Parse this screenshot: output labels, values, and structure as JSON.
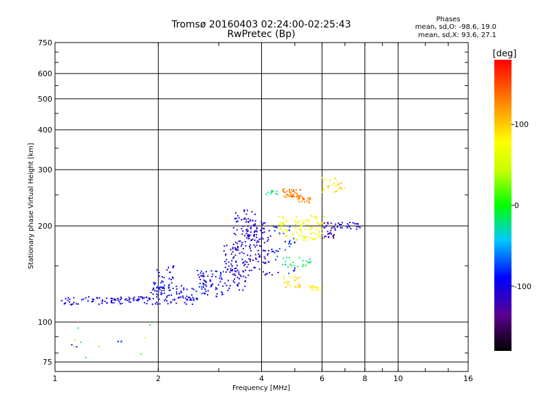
{
  "chart_data": {
    "type": "scatter",
    "title": "Tromsø 20160403 02:24:00-02:25:43",
    "subtitle": "RwPretec (Bp)",
    "xlabel": "Frequency [MHz]",
    "ylabel": "Stationary phase Virtual Height [km]",
    "x_scale": "log",
    "y_scale": "log",
    "xlim": [
      1,
      16
    ],
    "ylim": [
      70,
      750
    ],
    "x_ticks": [
      "1",
      "2",
      "4",
      "6",
      "8",
      "10",
      "16"
    ],
    "y_ticks": [
      "75",
      "100",
      "200",
      "300",
      "400",
      "500",
      "600",
      "750"
    ],
    "grid": true,
    "phase_box": {
      "title": "Phases",
      "line1": "mean, sd,O: -98.6, 19.0",
      "line2": "mean, sd,X:  93.6, 27.1"
    },
    "colorbar": {
      "label": "[deg]",
      "range": [
        -180,
        180
      ],
      "ticks": [
        "100",
        "0",
        "-100"
      ],
      "tick_values": [
        100,
        0,
        -100
      ]
    },
    "point_groups": [
      {
        "f_range": [
          1.04,
          1.35
        ],
        "h_range": [
          113,
          120
        ],
        "phase": [
          -115,
          -85
        ],
        "n": 30
      },
      {
        "f_range": [
          1.35,
          1.9
        ],
        "h_range": [
          114,
          120
        ],
        "phase": [
          -115,
          -90
        ],
        "n": 60
      },
      {
        "f_range": [
          1.9,
          2.6
        ],
        "h_range": [
          113,
          130
        ],
        "phase": [
          -115,
          -80
        ],
        "n": 90
      },
      {
        "f_range": [
          1.9,
          2.25
        ],
        "h_range": [
          125,
          150
        ],
        "phase": [
          -115,
          -80
        ],
        "n": 30
      },
      {
        "f_range": [
          2.6,
          3.1
        ],
        "h_range": [
          120,
          145
        ],
        "phase": [
          -110,
          -75
        ],
        "n": 70
      },
      {
        "f_range": [
          3.1,
          3.6
        ],
        "h_range": [
          125,
          175
        ],
        "phase": [
          -120,
          -85
        ],
        "n": 90
      },
      {
        "f_range": [
          3.3,
          3.9
        ],
        "h_range": [
          170,
          225
        ],
        "phase": [
          -120,
          -90
        ],
        "n": 70
      },
      {
        "f_range": [
          3.6,
          4.3
        ],
        "h_range": [
          140,
          210
        ],
        "phase": [
          -125,
          -90
        ],
        "n": 90
      },
      {
        "f_range": [
          4.3,
          5.0
        ],
        "h_range": [
          140,
          200
        ],
        "phase": [
          -100,
          -70
        ],
        "n": 30
      },
      {
        "f_range": [
          4.6,
          5.2
        ],
        "h_range": [
          245,
          262
        ],
        "phase": [
          115,
          145
        ],
        "n": 45
      },
      {
        "f_range": [
          5.1,
          5.6
        ],
        "h_range": [
          236,
          248
        ],
        "phase": [
          110,
          140
        ],
        "n": 30
      },
      {
        "f_range": [
          4.4,
          5.3
        ],
        "h_range": [
          180,
          215
        ],
        "phase": [
          45,
          95
        ],
        "n": 50
      },
      {
        "f_range": [
          5.3,
          6.1
        ],
        "h_range": [
          180,
          215
        ],
        "phase": [
          55,
          100
        ],
        "n": 55
      },
      {
        "f_range": [
          4.6,
          5.6
        ],
        "h_range": [
          148,
          160
        ],
        "phase": [
          -40,
          -5
        ],
        "n": 25
      },
      {
        "f_range": [
          4.6,
          5.2
        ],
        "h_range": [
          128,
          140
        ],
        "phase": [
          70,
          115
        ],
        "n": 25
      },
      {
        "f_range": [
          5.5,
          6.1
        ],
        "h_range": [
          125,
          130
        ],
        "phase": [
          70,
          90
        ],
        "n": 15
      },
      {
        "f_range": [
          6.0,
          6.6
        ],
        "h_range": [
          180,
          205
        ],
        "phase": [
          -130,
          -110
        ],
        "n": 30
      },
      {
        "f_range": [
          6.5,
          7.8
        ],
        "h_range": [
          195,
          205
        ],
        "phase": [
          -115,
          -95
        ],
        "n": 25
      },
      {
        "f_range": [
          6.0,
          7.0
        ],
        "h_range": [
          255,
          285
        ],
        "phase": [
          60,
          110
        ],
        "n": 30
      },
      {
        "f_range": [
          4.1,
          4.5
        ],
        "h_range": [
          250,
          260
        ],
        "phase": [
          -40,
          -10
        ],
        "n": 12
      },
      {
        "f_range": [
          1.1,
          1.9
        ],
        "h_range": [
          75,
          100
        ],
        "phase": [
          -120,
          60
        ],
        "n": 14
      }
    ]
  }
}
